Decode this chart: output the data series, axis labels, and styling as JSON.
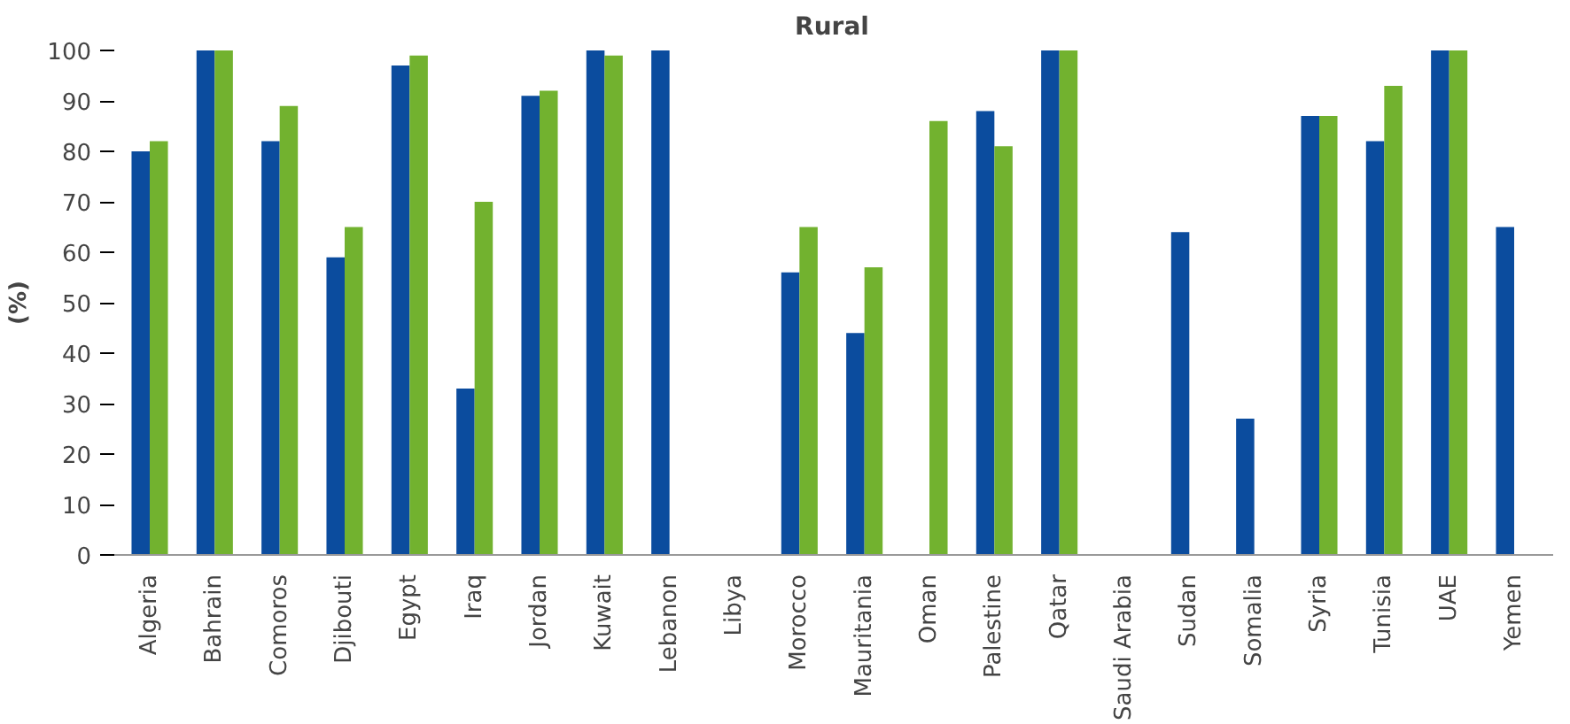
{
  "chart_data": {
    "type": "bar",
    "title": "Rural",
    "ylabel": "(%)",
    "categories": [
      "Algeria",
      "Bahrain",
      "Comoros",
      "Djibouti",
      "Egypt",
      "Iraq",
      "Jordan",
      "Kuwait",
      "Lebanon",
      "Libya",
      "Morocco",
      "Mauritania",
      "Oman",
      "Palestine",
      "Qatar",
      "Saudi Arabia",
      "Sudan",
      "Somalia",
      "Syria",
      "Tunisia",
      "UAE",
      "Yemen"
    ],
    "series": [
      {
        "color": "#0b4c9e",
        "values": [
          80,
          100,
          82,
          59,
          97,
          33,
          91,
          100,
          100,
          null,
          56,
          44,
          null,
          88,
          100,
          null,
          64,
          27,
          87,
          82,
          100,
          65
        ]
      },
      {
        "color": "#72b22f",
        "values": [
          82,
          100,
          89,
          65,
          99,
          70,
          92,
          99,
          null,
          null,
          65,
          57,
          86,
          81,
          100,
          null,
          null,
          null,
          87,
          93,
          100,
          null
        ]
      }
    ],
    "ylim": [
      0,
      100
    ],
    "yticks": [
      0,
      10,
      20,
      30,
      40,
      50,
      60,
      70,
      80,
      90,
      100
    ],
    "grid": false
  }
}
